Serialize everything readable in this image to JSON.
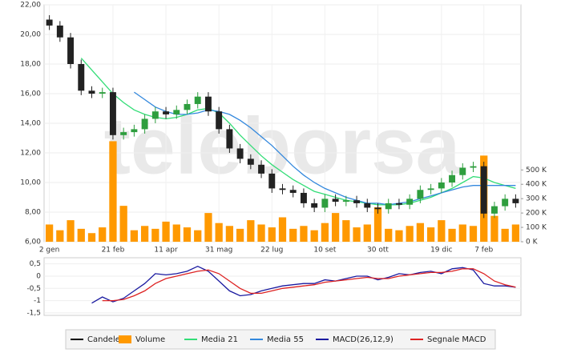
{
  "watermark": "teleborsa",
  "legend": true,
  "chart_data": [
    {
      "type": "candlestick",
      "categories": [
        "2 gen",
        null,
        null,
        null,
        null,
        null,
        "21 feb",
        null,
        null,
        null,
        null,
        "11 apr",
        null,
        null,
        null,
        null,
        "31 mag",
        null,
        null,
        null,
        null,
        "22 lug",
        null,
        null,
        null,
        null,
        "10 set",
        null,
        null,
        null,
        null,
        "30 ott",
        null,
        null,
        null,
        null,
        null,
        "19 dic",
        null,
        null,
        null,
        "7 feb",
        null,
        null,
        null
      ],
      "ylim": [
        6,
        22
      ],
      "yticks": [
        {
          "value": 6,
          "label": "6,00"
        },
        {
          "value": 8,
          "label": "8,00"
        },
        {
          "value": 10,
          "label": "10,00"
        },
        {
          "value": 12,
          "label": "12,00"
        },
        {
          "value": 14,
          "label": "14,00"
        },
        {
          "value": 16,
          "label": "16,00"
        },
        {
          "value": 18,
          "label": "18,00"
        },
        {
          "value": 20,
          "label": "20,00"
        },
        {
          "value": 22,
          "label": "22,00"
        }
      ],
      "y2lim": [
        0,
        1650000
      ],
      "y2ticks": [
        {
          "value": 0,
          "label": "0 K"
        },
        {
          "value": 100000,
          "label": "100 K"
        },
        {
          "value": 200000,
          "label": "200 K"
        },
        {
          "value": 300000,
          "label": "300 K"
        },
        {
          "value": 400000,
          "label": "400 K"
        },
        {
          "value": 500000,
          "label": "500 K"
        }
      ],
      "grid": true,
      "candles": {
        "name": "Candele",
        "color": "#000000",
        "up_color": "#2e9e3e",
        "down_color": "#222222",
        "open": [
          21.0,
          20.6,
          19.8,
          18.0,
          16.2,
          16.0,
          16.1,
          13.2,
          13.4,
          13.6,
          14.3,
          14.8,
          14.6,
          14.9,
          15.3,
          15.8,
          14.8,
          13.6,
          12.3,
          11.6,
          11.2,
          10.6,
          9.6,
          9.5,
          9.3,
          8.6,
          8.3,
          8.9,
          8.7,
          8.8,
          8.6,
          8.3,
          8.2,
          8.6,
          8.5,
          8.9,
          9.5,
          9.6,
          10.0,
          10.5,
          11.0,
          11.1,
          7.9,
          8.4,
          8.9
        ],
        "high": [
          21.3,
          20.9,
          20.1,
          18.3,
          16.5,
          16.4,
          16.4,
          13.7,
          13.9,
          14.6,
          15.1,
          15.1,
          15.2,
          15.6,
          16.1,
          16.1,
          15.1,
          13.9,
          12.6,
          11.9,
          11.5,
          10.9,
          9.9,
          9.8,
          9.6,
          8.9,
          9.2,
          9.2,
          9.1,
          9.1,
          8.9,
          8.6,
          8.9,
          8.9,
          9.2,
          9.8,
          9.9,
          10.3,
          10.8,
          11.3,
          11.4,
          11.4,
          8.7,
          9.2,
          9.2
        ],
        "low": [
          20.3,
          19.5,
          17.7,
          15.9,
          15.7,
          15.7,
          12.9,
          12.9,
          13.1,
          13.3,
          14.0,
          14.3,
          14.3,
          14.6,
          15.0,
          14.5,
          13.3,
          12.0,
          11.3,
          10.9,
          10.3,
          9.3,
          9.2,
          9.0,
          8.3,
          8.0,
          8.0,
          8.4,
          8.4,
          8.3,
          8.0,
          7.9,
          7.9,
          8.2,
          8.2,
          8.6,
          9.2,
          9.3,
          9.7,
          10.2,
          10.7,
          7.6,
          7.6,
          8.1,
          8.3
        ],
        "close": [
          20.6,
          19.8,
          18.0,
          16.2,
          16.0,
          16.1,
          13.2,
          13.4,
          13.6,
          14.3,
          14.8,
          14.6,
          14.9,
          15.3,
          15.8,
          14.8,
          13.6,
          12.3,
          11.6,
          11.2,
          10.6,
          9.6,
          9.5,
          9.3,
          8.6,
          8.3,
          8.9,
          8.7,
          8.8,
          8.6,
          8.3,
          8.2,
          8.6,
          8.5,
          8.9,
          9.5,
          9.6,
          10.0,
          10.5,
          11.0,
          11.1,
          7.9,
          8.4,
          8.9,
          8.6
        ]
      },
      "series": [
        {
          "name": "Volume",
          "type": "bar",
          "axis": "y2",
          "color": "#ff9900",
          "values": [
            120000,
            80000,
            150000,
            90000,
            60000,
            100000,
            700000,
            250000,
            80000,
            110000,
            90000,
            140000,
            120000,
            100000,
            80000,
            200000,
            130000,
            110000,
            90000,
            150000,
            120000,
            100000,
            170000,
            90000,
            110000,
            80000,
            130000,
            200000,
            150000,
            100000,
            120000,
            240000,
            90000,
            80000,
            110000,
            130000,
            100000,
            150000,
            90000,
            120000,
            110000,
            600000,
            180000,
            90000,
            120000
          ]
        },
        {
          "name": "Media 21",
          "type": "line",
          "color": "#33dd77",
          "values": [
            null,
            null,
            null,
            18.4,
            17.6,
            16.8,
            16.0,
            15.4,
            14.9,
            14.6,
            14.4,
            14.3,
            14.4,
            14.6,
            14.9,
            15.0,
            14.7,
            14.0,
            13.2,
            12.5,
            11.8,
            11.2,
            10.7,
            10.2,
            9.8,
            9.4,
            9.2,
            9.0,
            8.8,
            8.7,
            8.6,
            8.5,
            8.5,
            8.5,
            8.6,
            8.8,
            9.0,
            9.3,
            9.6,
            10.0,
            10.4,
            10.3,
            10.0,
            9.8,
            9.6
          ]
        },
        {
          "name": "Media 55",
          "type": "line",
          "color": "#3388dd",
          "values": [
            null,
            null,
            null,
            null,
            null,
            null,
            null,
            null,
            16.1,
            15.6,
            15.1,
            14.8,
            14.6,
            14.6,
            14.7,
            14.9,
            14.8,
            14.6,
            14.2,
            13.7,
            13.1,
            12.5,
            11.8,
            11.1,
            10.5,
            10.0,
            9.6,
            9.3,
            9.0,
            8.8,
            8.6,
            8.6,
            8.5,
            8.6,
            8.7,
            8.9,
            9.1,
            9.3,
            9.5,
            9.7,
            9.8,
            9.8,
            9.8,
            9.8,
            9.8
          ]
        }
      ]
    },
    {
      "type": "line",
      "ylim": [
        -1.6,
        0.75
      ],
      "yticks": [
        {
          "value": 0.5,
          "label": "0,5"
        },
        0,
        {
          "value": -0.5,
          "label": "-0,5"
        },
        -1,
        {
          "value": -1.5,
          "label": "-1,5"
        }
      ],
      "grid": true,
      "series": [
        {
          "name": "MACD(26,12,9)",
          "color": "#1a1aa0",
          "values": [
            null,
            null,
            null,
            null,
            -1.1,
            -0.85,
            -1.05,
            -0.9,
            -0.6,
            -0.3,
            0.1,
            0.05,
            0.1,
            0.2,
            0.4,
            0.2,
            -0.2,
            -0.6,
            -0.8,
            -0.75,
            -0.6,
            -0.5,
            -0.4,
            -0.35,
            -0.3,
            -0.3,
            -0.15,
            -0.2,
            -0.1,
            0.0,
            0.0,
            -0.15,
            -0.05,
            0.1,
            0.05,
            0.15,
            0.2,
            0.1,
            0.3,
            0.35,
            0.25,
            -0.3,
            -0.4,
            -0.4,
            -0.45
          ]
        },
        {
          "name": "Segnale MACD",
          "color": "#dd2222",
          "values": [
            null,
            null,
            null,
            null,
            null,
            -1.0,
            -1.0,
            -0.95,
            -0.8,
            -0.6,
            -0.3,
            -0.1,
            0.0,
            0.1,
            0.2,
            0.25,
            0.1,
            -0.2,
            -0.5,
            -0.7,
            -0.7,
            -0.6,
            -0.5,
            -0.45,
            -0.4,
            -0.35,
            -0.25,
            -0.2,
            -0.15,
            -0.1,
            -0.05,
            -0.1,
            -0.1,
            0.0,
            0.05,
            0.1,
            0.15,
            0.15,
            0.2,
            0.3,
            0.3,
            0.1,
            -0.2,
            -0.35,
            -0.45
          ]
        }
      ]
    }
  ]
}
